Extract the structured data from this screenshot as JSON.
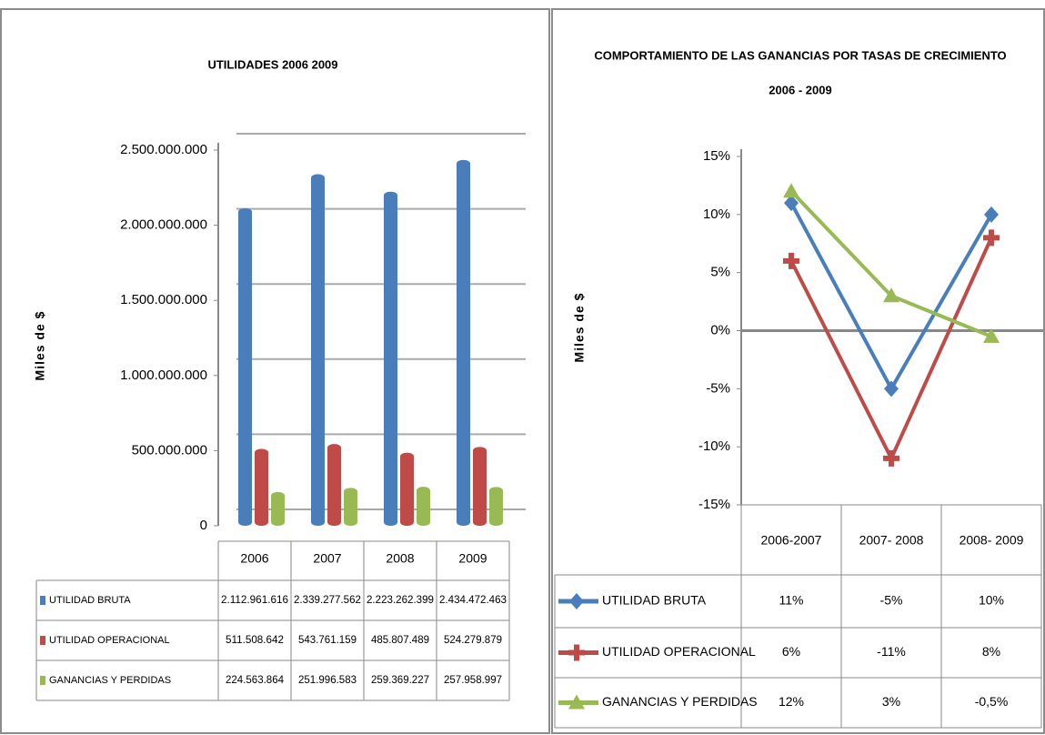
{
  "chart_data": [
    {
      "type": "bar",
      "title": "UTILIDADES  2006 2009",
      "y_label": "Miles de $",
      "categories": [
        "2006",
        "2007",
        "2008",
        "2009"
      ],
      "series": [
        {
          "name": "UTILIDAD BRUTA",
          "color": "#4a7ebb",
          "values": [
            2112961616,
            2339277562,
            2223262399,
            2434472463
          ],
          "value_labels": [
            "2.112.961.616",
            "2.339.277.562",
            "2.223.262.399",
            "2.434.472.463"
          ]
        },
        {
          "name": "UTILIDAD OPERACIONAL",
          "color": "#be4b48",
          "values": [
            511508642,
            543761159,
            485807489,
            524279879
          ],
          "value_labels": [
            "511.508.642",
            "543.761.159",
            "485.807.489",
            "524.279.879"
          ]
        },
        {
          "name": "GANANCIAS Y PERDIDAS",
          "color": "#98b954",
          "values": [
            224563864,
            251996583,
            259369227,
            257958997
          ],
          "value_labels": [
            "224.563.864",
            "251.996.583",
            "259.369.227",
            "257.958.997"
          ]
        }
      ],
      "ylim": [
        0,
        2500000000
      ],
      "yticks": [
        0,
        {
          "value": 500000000,
          "label": "500.000.000"
        },
        {
          "value": 1000000000,
          "label": "1.000.000.000"
        },
        {
          "value": 1500000000,
          "label": "1.500.000.000"
        },
        {
          "value": 2000000000,
          "label": "2.000.000.000"
        },
        {
          "value": 2500000000,
          "label": "2.500.000.000"
        }
      ],
      "grid": true
    },
    {
      "type": "line",
      "title": "COMPORTAMIENTO DE LAS GANANCIAS POR TASAS DE CRECIMIENTO",
      "subtitle": "2006 - 2009",
      "y_label": "Miles de $",
      "categories": [
        "2006-2007",
        "2007- 2008",
        "2008- 2009"
      ],
      "series": [
        {
          "name": "UTILIDAD BRUTA",
          "color": "#4a7ebb",
          "marker": "diamond",
          "values": [
            11,
            -5,
            10
          ],
          "value_labels": [
            "11%",
            "-5%",
            "10%"
          ]
        },
        {
          "name": "UTILIDAD OPERACIONAL",
          "color": "#be4b48",
          "marker": "square",
          "values": [
            6,
            -11,
            8
          ],
          "value_labels": [
            "6%",
            "-11%",
            "8%"
          ]
        },
        {
          "name": "GANANCIAS Y PERDIDAS",
          "color": "#98b954",
          "marker": "triangle",
          "values": [
            12,
            3,
            -0.5
          ],
          "value_labels": [
            "12%",
            "3%",
            "-0,5%"
          ]
        }
      ],
      "ylim": [
        -15,
        15
      ],
      "yticks": [
        {
          "value": -15,
          "label": "-15%"
        },
        {
          "value": -10,
          "label": "-10%"
        },
        {
          "value": -5,
          "label": "-5%"
        },
        {
          "value": 0,
          "label": "0%"
        },
        {
          "value": 5,
          "label": "5%"
        },
        {
          "value": 10,
          "label": "10%"
        },
        {
          "value": 15,
          "label": "15%"
        }
      ],
      "grid": false,
      "zero_line": true
    }
  ]
}
